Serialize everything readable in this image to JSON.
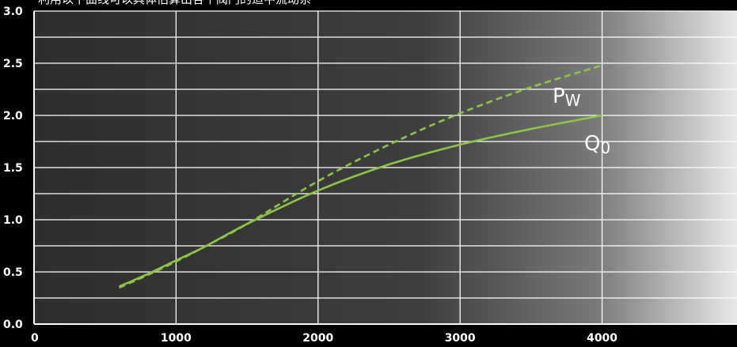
{
  "caption": "利用以下曲线可以具体估算出各个阀门的适中流动系",
  "chart_data": {
    "type": "line",
    "xlim": [
      0,
      4950
    ],
    "ylim": [
      0,
      3.0
    ],
    "x_ticks": [
      0,
      1000,
      2000,
      3000,
      4000
    ],
    "x_tick_labels": [
      "0",
      "1000",
      "2000",
      "3000",
      "4000"
    ],
    "y_ticks": [
      0.0,
      0.5,
      1.0,
      1.5,
      2.0,
      2.5,
      3.0
    ],
    "y_tick_labels": [
      "0.0",
      "0.5",
      "1.0",
      "1.5",
      "2.0",
      "2.5",
      "3.0"
    ],
    "y_minor_ticks": [
      0.25,
      0.75,
      1.25,
      1.75,
      2.25,
      2.75
    ],
    "grid": true,
    "series": [
      {
        "label_main": "Q",
        "label_sub": "0",
        "style": "solid",
        "color": "#8dc63f",
        "x": [
          600,
          800,
          1000,
          1200,
          1500,
          2000,
          2500,
          3000,
          3500,
          4000
        ],
        "y": [
          0.36,
          0.48,
          0.61,
          0.74,
          0.96,
          1.28,
          1.53,
          1.72,
          1.87,
          2.0
        ]
      },
      {
        "label_main": "P",
        "label_sub": "W",
        "style": "dashed",
        "color": "#8dc63f",
        "x": [
          600,
          800,
          1000,
          1200,
          1500,
          2000,
          2500,
          3000,
          3500,
          4000
        ],
        "y": [
          0.35,
          0.47,
          0.6,
          0.74,
          0.96,
          1.37,
          1.72,
          2.02,
          2.27,
          2.48
        ]
      }
    ]
  }
}
